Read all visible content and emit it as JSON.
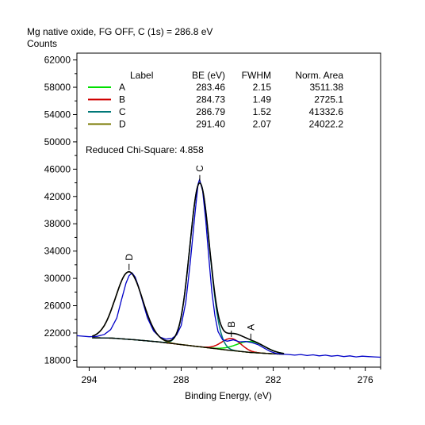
{
  "chart_data": {
    "type": "line",
    "title": "Mg native oxide, FG OFF, C (1s) = 286.8 eV",
    "ylabel": "Counts",
    "xlabel": "Binding Energy, (eV)",
    "xlim": [
      294.8,
      275.0
    ],
    "ylim": [
      17000,
      63000
    ],
    "x_ticks": [
      294,
      288,
      282,
      276
    ],
    "y_ticks": [
      18000,
      22000,
      26000,
      30000,
      34000,
      38000,
      42000,
      46000,
      50000,
      54000,
      58000,
      62000
    ],
    "grid": false,
    "legend": {
      "placement": "top-left",
      "headers": [
        "Label",
        "BE (eV)",
        "FWHM",
        "Norm. Area"
      ],
      "rows": [
        {
          "label": "A",
          "be": "283.46",
          "fwhm": "2.15",
          "area": "3511.38",
          "color": "#00e000"
        },
        {
          "label": "B",
          "be": "284.73",
          "fwhm": "1.49",
          "area": "2725.1",
          "color": "#d00000"
        },
        {
          "label": "C",
          "be": "286.79",
          "fwhm": "1.52",
          "area": "41332.6",
          "color": "#007878"
        },
        {
          "label": "D",
          "be": "291.40",
          "fwhm": "2.07",
          "area": "24022.2",
          "color": "#787800"
        }
      ]
    },
    "annotation": "Reduced Chi-Square: 4.858",
    "background_points": [
      [
        293.8,
        21300
      ],
      [
        292.5,
        21250
      ],
      [
        291.0,
        21000
      ],
      [
        289.5,
        20700
      ],
      [
        288.0,
        20300
      ],
      [
        286.5,
        19900
      ],
      [
        285.0,
        19500
      ],
      [
        283.5,
        19150
      ],
      [
        282.0,
        18950
      ],
      [
        281.3,
        18900
      ]
    ],
    "peaks": [
      {
        "label": "A",
        "center": 283.46,
        "fwhm": 2.15,
        "height": 1600,
        "color": "#00e000"
      },
      {
        "label": "B",
        "center": 284.73,
        "fwhm": 1.49,
        "height": 1750,
        "color": "#d00000"
      },
      {
        "label": "C",
        "center": 286.79,
        "fwhm": 1.52,
        "height": 24000,
        "color": "#007878"
      },
      {
        "label": "D",
        "center": 291.4,
        "fwhm": 2.07,
        "height": 9900,
        "color": "#787800"
      }
    ],
    "series": [
      {
        "name": "raw",
        "color": "#0000c8",
        "points": [
          [
            294.8,
            21600
          ],
          [
            294.0,
            21450
          ],
          [
            293.5,
            21500
          ],
          [
            293.0,
            21800
          ],
          [
            292.6,
            22500
          ],
          [
            292.2,
            24200
          ],
          [
            291.9,
            26800
          ],
          [
            291.6,
            29300
          ],
          [
            291.4,
            30400
          ],
          [
            291.2,
            30800
          ],
          [
            291.0,
            30200
          ],
          [
            290.8,
            28900
          ],
          [
            290.5,
            26500
          ],
          [
            290.2,
            24200
          ],
          [
            289.8,
            22300
          ],
          [
            289.4,
            21400
          ],
          [
            289.0,
            21100
          ],
          [
            288.6,
            21200
          ],
          [
            288.3,
            21700
          ],
          [
            288.0,
            23100
          ],
          [
            287.7,
            26500
          ],
          [
            287.4,
            32500
          ],
          [
            287.1,
            39500
          ],
          [
            286.9,
            43800
          ],
          [
            286.8,
            44500
          ],
          [
            286.6,
            42800
          ],
          [
            286.4,
            38500
          ],
          [
            286.2,
            33000
          ],
          [
            286.0,
            28000
          ],
          [
            285.8,
            24500
          ],
          [
            285.6,
            22200
          ],
          [
            285.3,
            21000
          ],
          [
            285.0,
            20800
          ],
          [
            284.6,
            21000
          ],
          [
            284.2,
            20700
          ],
          [
            283.8,
            20750
          ],
          [
            283.4,
            20600
          ],
          [
            283.0,
            20300
          ],
          [
            282.6,
            19800
          ],
          [
            282.2,
            19300
          ],
          [
            281.8,
            19000
          ],
          [
            281.4,
            18900
          ],
          [
            281.0,
            18850
          ],
          [
            280.6,
            18750
          ],
          [
            280.2,
            18850
          ],
          [
            279.8,
            18700
          ],
          [
            279.4,
            18800
          ],
          [
            279.0,
            18650
          ],
          [
            278.6,
            18750
          ],
          [
            278.2,
            18600
          ],
          [
            277.8,
            18700
          ],
          [
            277.4,
            18550
          ],
          [
            277.0,
            18650
          ],
          [
            276.6,
            18500
          ],
          [
            276.2,
            18600
          ],
          [
            275.8,
            18550
          ],
          [
            275.4,
            18500
          ],
          [
            275.0,
            18450
          ]
        ]
      }
    ]
  }
}
